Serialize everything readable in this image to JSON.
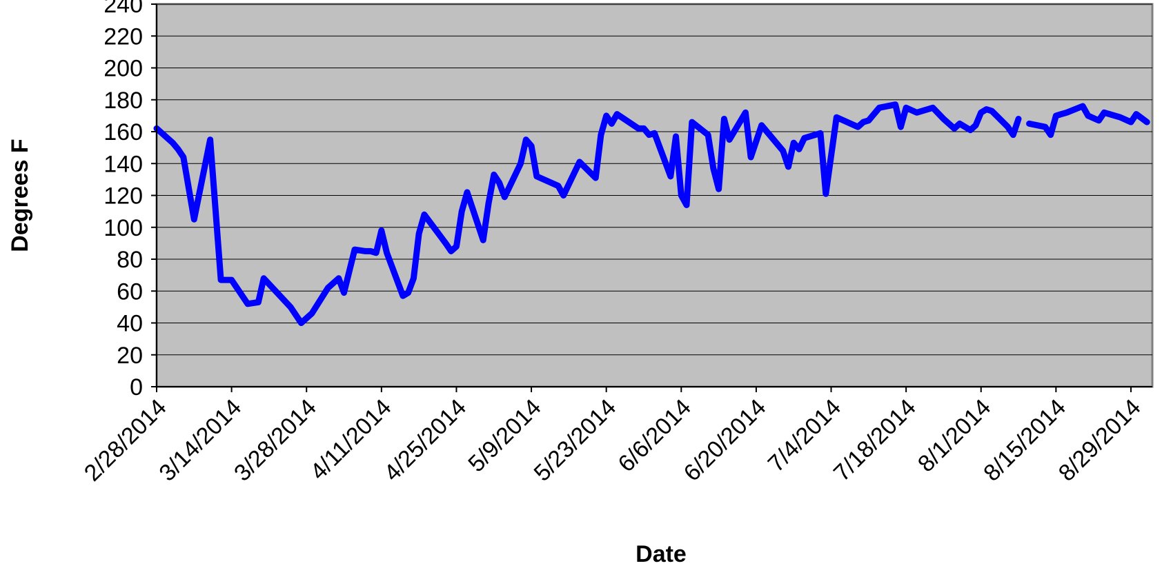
{
  "chart_data": {
    "type": "line",
    "title": "",
    "xlabel": "Date",
    "ylabel": "Degrees F",
    "ylim": [
      0,
      240
    ],
    "yticks": [
      "0",
      "20",
      "40",
      "60",
      "80",
      "100",
      "120",
      "140",
      "160",
      "180",
      "200",
      "220",
      "240"
    ],
    "xlim": [
      "2014-02-28",
      "2014-09-02"
    ],
    "xticks": [
      {
        "date": "2014-02-28",
        "label": "2/28/2014"
      },
      {
        "date": "2014-03-14",
        "label": "3/14/2014"
      },
      {
        "date": "2014-03-28",
        "label": "3/28/2014"
      },
      {
        "date": "2014-04-11",
        "label": "4/11/2014"
      },
      {
        "date": "2014-04-25",
        "label": "4/25/2014"
      },
      {
        "date": "2014-05-09",
        "label": "5/9/2014"
      },
      {
        "date": "2014-05-23",
        "label": "5/23/2014"
      },
      {
        "date": "2014-06-06",
        "label": "6/6/2014"
      },
      {
        "date": "2014-06-20",
        "label": "6/20/2014"
      },
      {
        "date": "2014-07-04",
        "label": "7/4/2014"
      },
      {
        "date": "2014-07-18",
        "label": "7/18/2014"
      },
      {
        "date": "2014-08-01",
        "label": "8/1/2014"
      },
      {
        "date": "2014-08-15",
        "label": "8/15/2014"
      },
      {
        "date": "2014-08-29",
        "label": "8/29/2014"
      }
    ],
    "grid": true,
    "colors": {
      "line": "#0000ff",
      "plot_background": "#c0c0c0",
      "gridline": "#000000"
    },
    "series": [
      {
        "segments": [
          [
            [
              "2014-02-28",
              162
            ],
            [
              "2014-03-03",
              153
            ],
            [
              "2014-03-04",
              149
            ],
            [
              "2014-03-05",
              144
            ],
            [
              "2014-03-07",
              105
            ],
            [
              "2014-03-10",
              155
            ],
            [
              "2014-03-12",
              67
            ],
            [
              "2014-03-14",
              67
            ],
            [
              "2014-03-17",
              52
            ],
            [
              "2014-03-19",
              53
            ],
            [
              "2014-03-20",
              68
            ],
            [
              "2014-03-25",
              50
            ],
            [
              "2014-03-27",
              40
            ],
            [
              "2014-03-29",
              46
            ],
            [
              "2014-04-01",
              62
            ],
            [
              "2014-04-03",
              68
            ],
            [
              "2014-04-04",
              59
            ],
            [
              "2014-04-06",
              86
            ],
            [
              "2014-04-08",
              85
            ],
            [
              "2014-04-09",
              85
            ],
            [
              "2014-04-10",
              84
            ],
            [
              "2014-04-11",
              98
            ],
            [
              "2014-04-12",
              84
            ],
            [
              "2014-04-15",
              57
            ],
            [
              "2014-04-16",
              59
            ],
            [
              "2014-04-17",
              68
            ],
            [
              "2014-04-18",
              96
            ],
            [
              "2014-04-19",
              108
            ],
            [
              "2014-04-23",
              90
            ],
            [
              "2014-04-24",
              85
            ],
            [
              "2014-04-25",
              88
            ],
            [
              "2014-04-26",
              110
            ],
            [
              "2014-04-27",
              122
            ],
            [
              "2014-04-30",
              92
            ],
            [
              "2014-05-01",
              115
            ],
            [
              "2014-05-02",
              133
            ],
            [
              "2014-05-03",
              128
            ],
            [
              "2014-05-04",
              119
            ],
            [
              "2014-05-07",
              140
            ],
            [
              "2014-05-08",
              155
            ],
            [
              "2014-05-09",
              151
            ],
            [
              "2014-05-10",
              132
            ],
            [
              "2014-05-14",
              126
            ],
            [
              "2014-05-15",
              120
            ],
            [
              "2014-05-18",
              141
            ],
            [
              "2014-05-21",
              131
            ],
            [
              "2014-05-22",
              158
            ],
            [
              "2014-05-23",
              170
            ],
            [
              "2014-05-24",
              165
            ],
            [
              "2014-05-25",
              171
            ],
            [
              "2014-05-29",
              162
            ],
            [
              "2014-05-30",
              162
            ],
            [
              "2014-05-31",
              158
            ],
            [
              "2014-06-01",
              159
            ],
            [
              "2014-06-04",
              132
            ],
            [
              "2014-06-05",
              157
            ],
            [
              "2014-06-06",
              120
            ],
            [
              "2014-06-07",
              114
            ],
            [
              "2014-06-08",
              166
            ],
            [
              "2014-06-11",
              158
            ],
            [
              "2014-06-12",
              137
            ],
            [
              "2014-06-13",
              124
            ],
            [
              "2014-06-14",
              168
            ],
            [
              "2014-06-15",
              155
            ],
            [
              "2014-06-18",
              172
            ],
            [
              "2014-06-19",
              144
            ],
            [
              "2014-06-21",
              164
            ],
            [
              "2014-06-25",
              148
            ],
            [
              "2014-06-26",
              138
            ],
            [
              "2014-06-27",
              153
            ],
            [
              "2014-06-28",
              149
            ],
            [
              "2014-06-29",
              156
            ],
            [
              "2014-07-02",
              159
            ],
            [
              "2014-07-03",
              121
            ],
            [
              "2014-07-05",
              169
            ],
            [
              "2014-07-09",
              163
            ],
            [
              "2014-07-10",
              166
            ],
            [
              "2014-07-11",
              167
            ],
            [
              "2014-07-13",
              175
            ],
            [
              "2014-07-16",
              177
            ],
            [
              "2014-07-17",
              163
            ],
            [
              "2014-07-18",
              175
            ],
            [
              "2014-07-20",
              172
            ],
            [
              "2014-07-23",
              175
            ],
            [
              "2014-07-25",
              168
            ],
            [
              "2014-07-27",
              162
            ],
            [
              "2014-07-28",
              165
            ],
            [
              "2014-07-30",
              161
            ],
            [
              "2014-07-31",
              164
            ],
            [
              "2014-08-01",
              172
            ],
            [
              "2014-08-02",
              174
            ],
            [
              "2014-08-03",
              173
            ],
            [
              "2014-08-06",
              163
            ],
            [
              "2014-08-07",
              158
            ],
            [
              "2014-08-08",
              168
            ]
          ],
          [
            [
              "2014-08-10",
              165
            ],
            [
              "2014-08-13",
              163
            ],
            [
              "2014-08-14",
              158
            ],
            [
              "2014-08-15",
              170
            ],
            [
              "2014-08-16",
              171
            ],
            [
              "2014-08-17",
              172
            ],
            [
              "2014-08-20",
              176
            ],
            [
              "2014-08-21",
              170
            ],
            [
              "2014-08-23",
              167
            ],
            [
              "2014-08-24",
              172
            ],
            [
              "2014-08-27",
              169
            ],
            [
              "2014-08-29",
              166
            ],
            [
              "2014-08-30",
              171
            ],
            [
              "2014-09-01",
              166
            ]
          ]
        ]
      }
    ]
  }
}
